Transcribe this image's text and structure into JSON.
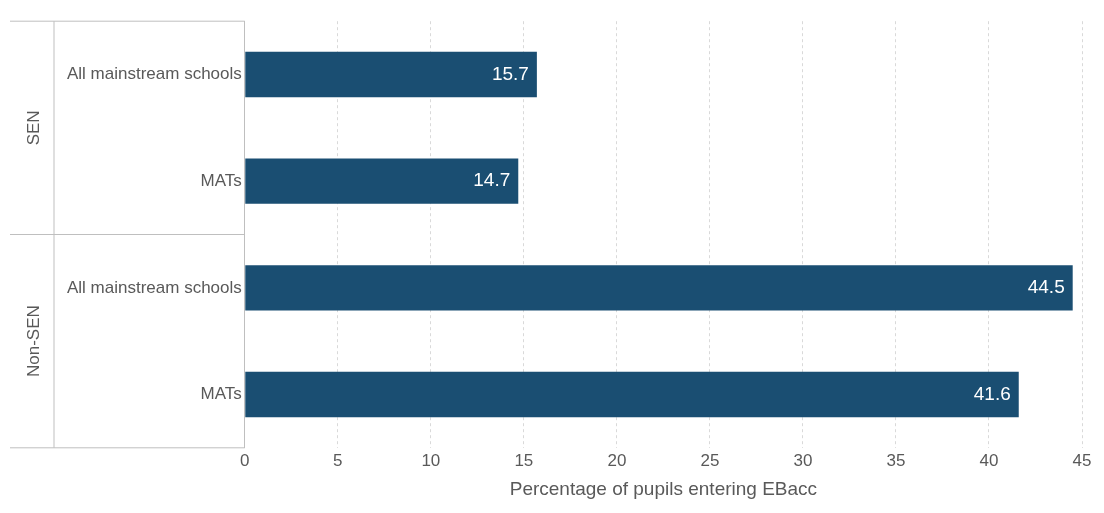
{
  "chart_data": {
    "type": "bar",
    "orientation": "horizontal",
    "xlabel": "Percentage of pupils entering EBacc",
    "categories": [
      "All mainstream schools",
      "MATs",
      "All mainstream schools",
      "MATs"
    ],
    "values": [
      15.7,
      14.7,
      44.5,
      41.6
    ],
    "color": "#1a4e72",
    "xlim": [
      0,
      45
    ],
    "xticks": [
      0,
      5,
      10,
      15,
      20,
      25,
      30,
      35,
      40,
      45
    ],
    "grid": "x",
    "data_labels": true,
    "legend": false,
    "annotations": [
      "SEN",
      "Non-SEN"
    ]
  }
}
